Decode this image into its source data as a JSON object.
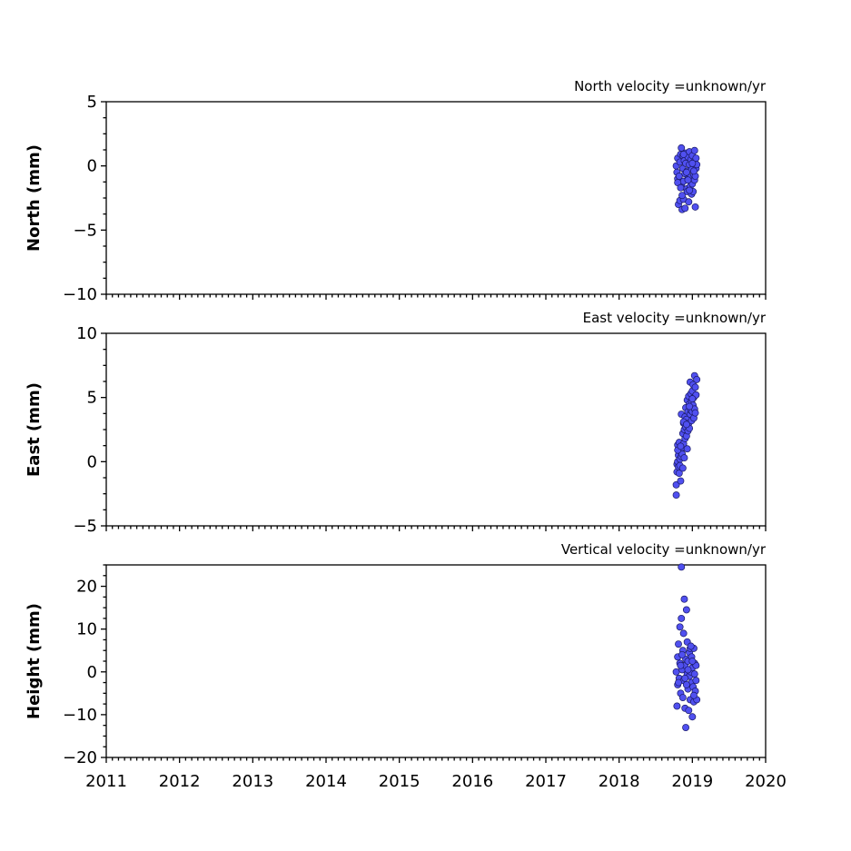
{
  "chart_data": [
    {
      "type": "scatter",
      "title": "North velocity =unknown/yr",
      "ylabel": "North (mm)",
      "ylim": [
        -10,
        5
      ],
      "yticks": [
        -10,
        -5,
        0,
        5
      ],
      "yminor_step": 1.25,
      "xlim": [
        2011,
        2020
      ],
      "xticks": [
        2011,
        2012,
        2013,
        2014,
        2015,
        2016,
        2017,
        2018,
        2019,
        2020
      ],
      "show_xtick_labels": false,
      "color": "#5050f0",
      "x": [
        2018.78,
        2018.79,
        2018.8,
        2018.8,
        2018.81,
        2018.82,
        2018.83,
        2018.83,
        2018.84,
        2018.85,
        2018.85,
        2018.86,
        2018.87,
        2018.87,
        2018.88,
        2018.88,
        2018.89,
        2018.9,
        2018.9,
        2018.91,
        2018.91,
        2018.92,
        2018.93,
        2018.93,
        2018.94,
        2018.94,
        2018.95,
        2018.96,
        2018.96,
        2018.97,
        2018.97,
        2018.98,
        2018.99,
        2018.99,
        2019.0,
        2019.0,
        2019.01,
        2019.02,
        2019.02,
        2019.03,
        2019.03,
        2019.04,
        2019.05,
        2019.05,
        2019.06,
        2018.8,
        2018.84,
        2018.88,
        2018.92,
        2018.96,
        2019.0,
        2019.04,
        2018.86,
        2018.94,
        2019.02
      ],
      "y": [
        0.0,
        -0.5,
        -1.0,
        0.6,
        -3.0,
        -0.8,
        0.3,
        -2.7,
        0.9,
        -1.5,
        1.4,
        -3.4,
        -0.2,
        0.8,
        -1.2,
        -2.6,
        0.4,
        -0.6,
        -3.3,
        0.2,
        1.0,
        -1.8,
        -0.4,
        -2.0,
        0.7,
        -1.0,
        -2.8,
        0.1,
        1.1,
        -1.6,
        -0.9,
        0.5,
        -2.2,
        -0.3,
        0.8,
        -1.4,
        -2.0,
        0.3,
        -0.7,
        1.2,
        -1.1,
        -3.2,
        0.6,
        -0.2,
        0.1,
        -1.3,
        -1.7,
        0.9,
        -0.5,
        -1.9,
        0.2,
        -0.8,
        -2.3,
        -1.1,
        -0.4
      ]
    },
    {
      "type": "scatter",
      "title": "East velocity =unknown/yr",
      "ylabel": "East (mm)",
      "ylim": [
        -5,
        10
      ],
      "yticks": [
        -5,
        0,
        5,
        10
      ],
      "yminor_step": 1.25,
      "xlim": [
        2011,
        2020
      ],
      "xticks": [
        2011,
        2012,
        2013,
        2014,
        2015,
        2016,
        2017,
        2018,
        2019,
        2020
      ],
      "show_xtick_labels": false,
      "color": "#5050f0",
      "x": [
        2018.78,
        2018.78,
        2018.79,
        2018.79,
        2018.8,
        2018.8,
        2018.81,
        2018.81,
        2018.82,
        2018.82,
        2018.83,
        2018.83,
        2018.84,
        2018.84,
        2018.85,
        2018.85,
        2018.86,
        2018.86,
        2018.87,
        2018.87,
        2018.88,
        2018.88,
        2018.89,
        2018.89,
        2018.9,
        2018.9,
        2018.91,
        2018.91,
        2018.92,
        2018.92,
        2018.93,
        2018.93,
        2018.94,
        2018.94,
        2018.95,
        2018.95,
        2018.96,
        2018.96,
        2018.97,
        2018.97,
        2018.98,
        2018.98,
        2018.99,
        2018.99,
        2019.0,
        2019.0,
        2019.01,
        2019.01,
        2019.02,
        2019.02,
        2019.03,
        2019.03,
        2019.04,
        2019.05,
        2019.06,
        2018.8,
        2018.84,
        2018.88,
        2018.92,
        2018.96,
        2019.0,
        2019.04
      ],
      "y": [
        -2.6,
        -1.8,
        -0.8,
        -0.2,
        0.0,
        1.3,
        -0.4,
        0.5,
        -0.9,
        1.5,
        0.2,
        -0.3,
        0.8,
        -1.5,
        0.4,
        3.7,
        0.6,
        1.1,
        2.2,
        -0.5,
        3.0,
        1.4,
        2.5,
        0.3,
        3.5,
        1.8,
        4.2,
        2.7,
        3.3,
        2.0,
        4.8,
        1.0,
        3.9,
        2.4,
        5.1,
        3.0,
        4.5,
        2.6,
        6.2,
        3.7,
        4.0,
        5.3,
        4.7,
        3.2,
        5.5,
        3.9,
        6.0,
        4.4,
        5.0,
        3.4,
        6.7,
        4.1,
        5.8,
        5.2,
        6.4,
        0.9,
        1.2,
        3.1,
        2.9,
        4.3,
        4.9,
        3.8
      ]
    },
    {
      "type": "scatter",
      "title": "Vertical velocity =unknown/yr",
      "ylabel": "Height (mm)",
      "ylim": [
        -20,
        25
      ],
      "yticks": [
        -20,
        -10,
        0,
        10,
        20
      ],
      "yminor_step": 2.5,
      "xlim": [
        2011,
        2020
      ],
      "xticks": [
        2011,
        2012,
        2013,
        2014,
        2015,
        2016,
        2017,
        2018,
        2019,
        2020
      ],
      "show_xtick_labels": true,
      "color": "#5050f0",
      "x": [
        2018.78,
        2018.79,
        2018.8,
        2018.8,
        2018.81,
        2018.82,
        2018.83,
        2018.83,
        2018.84,
        2018.85,
        2018.85,
        2018.86,
        2018.87,
        2018.87,
        2018.88,
        2018.88,
        2018.89,
        2018.9,
        2018.9,
        2018.91,
        2018.91,
        2018.92,
        2018.93,
        2018.93,
        2018.94,
        2018.94,
        2018.95,
        2018.96,
        2018.96,
        2018.97,
        2018.97,
        2018.98,
        2018.99,
        2018.99,
        2019.0,
        2019.0,
        2019.01,
        2019.02,
        2019.02,
        2019.03,
        2019.03,
        2019.04,
        2019.05,
        2019.05,
        2019.06,
        2018.81,
        2018.86,
        2018.9,
        2018.94,
        2018.98,
        2019.02,
        2018.84,
        2018.92,
        2019.0
      ],
      "y": [
        0.0,
        -8.0,
        3.5,
        -3.0,
        6.5,
        -1.5,
        10.5,
        2.0,
        -5.0,
        24.5,
        12.5,
        0.5,
        -6.0,
        5.0,
        9.0,
        -2.0,
        17.0,
        1.5,
        -8.5,
        3.0,
        -13.0,
        14.5,
        -0.5,
        7.0,
        -4.0,
        2.5,
        -9.0,
        4.5,
        -1.0,
        5.5,
        -6.5,
        0.0,
        -2.5,
        3.5,
        -10.5,
        1.0,
        -3.5,
        5.5,
        -7.0,
        2.0,
        -0.5,
        -4.5,
        1.5,
        -2.0,
        -6.5,
        -2.5,
        4.0,
        -1.5,
        0.5,
        6.0,
        -5.5,
        1.5,
        -3.0,
        2.5
      ]
    }
  ]
}
